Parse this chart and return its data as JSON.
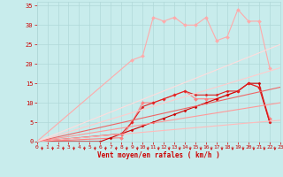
{
  "xlabel": "Vent moyen/en rafales ( km/h )",
  "xlim": [
    0,
    23
  ],
  "ylim": [
    0,
    36
  ],
  "background_color": "#c8ecec",
  "grid_color": "#b0d8d8",
  "text_color": "#cc0000",
  "xticks": [
    0,
    1,
    2,
    3,
    4,
    5,
    6,
    7,
    8,
    9,
    10,
    11,
    12,
    13,
    14,
    15,
    16,
    17,
    18,
    19,
    20,
    21,
    22,
    23
  ],
  "yticks": [
    0,
    5,
    10,
    15,
    20,
    25,
    30,
    35
  ],
  "line_configs": [
    {
      "color": "#ffaaaa",
      "lw": 0.8,
      "marker": "D",
      "ms": 2.0,
      "x": [
        0,
        9,
        10,
        11,
        12,
        13,
        14,
        15,
        16,
        17,
        18,
        19,
        20,
        21,
        22
      ],
      "y": [
        0,
        21,
        22,
        32,
        31,
        32,
        30,
        30,
        32,
        26,
        27,
        34,
        31,
        31,
        19
      ]
    },
    {
      "color": "#ff8080",
      "lw": 0.8,
      "marker": "D",
      "ms": 2.0,
      "x": [
        0,
        8,
        9,
        10,
        11,
        12,
        13,
        14,
        15,
        16,
        17,
        18,
        19,
        20,
        21,
        22
      ],
      "y": [
        0,
        1,
        5,
        10,
        10,
        11,
        12,
        13,
        11,
        11,
        11,
        12,
        13,
        15,
        14,
        6
      ]
    },
    {
      "color": "#cc0000",
      "lw": 0.8,
      "marker": "D",
      "ms": 1.5,
      "x": [
        0,
        6,
        7,
        8,
        9,
        10,
        11,
        12,
        13,
        14,
        15,
        16,
        17,
        18,
        19,
        20,
        21,
        22
      ],
      "y": [
        0,
        0,
        1,
        2,
        3,
        4,
        5,
        6,
        7,
        8,
        9,
        10,
        11,
        12,
        13,
        15,
        15,
        5
      ]
    },
    {
      "color": "#dd2222",
      "lw": 0.8,
      "marker": "D",
      "ms": 1.5,
      "x": [
        0,
        8,
        9,
        10,
        11,
        12,
        13,
        14,
        15,
        16,
        17,
        18,
        19,
        20,
        21,
        22
      ],
      "y": [
        0,
        2,
        5,
        9,
        10,
        11,
        12,
        13,
        12,
        12,
        12,
        13,
        13,
        15,
        14,
        5
      ]
    },
    {
      "color": "#ffbbbb",
      "lw": 0.8,
      "marker": null,
      "ms": 0,
      "x": [
        0,
        23
      ],
      "y": [
        0,
        5.5
      ]
    },
    {
      "color": "#ff9999",
      "lw": 0.8,
      "marker": null,
      "ms": 0,
      "x": [
        0,
        23
      ],
      "y": [
        0,
        10
      ]
    },
    {
      "color": "#ee6666",
      "lw": 0.8,
      "marker": null,
      "ms": 0,
      "x": [
        0,
        23
      ],
      "y": [
        0,
        14
      ]
    },
    {
      "color": "#ffcccc",
      "lw": 0.8,
      "marker": null,
      "ms": 0,
      "x": [
        0,
        23
      ],
      "y": [
        0,
        19
      ]
    },
    {
      "color": "#ffdddd",
      "lw": 0.8,
      "marker": null,
      "ms": 0,
      "x": [
        0,
        23
      ],
      "y": [
        0,
        25
      ]
    }
  ]
}
